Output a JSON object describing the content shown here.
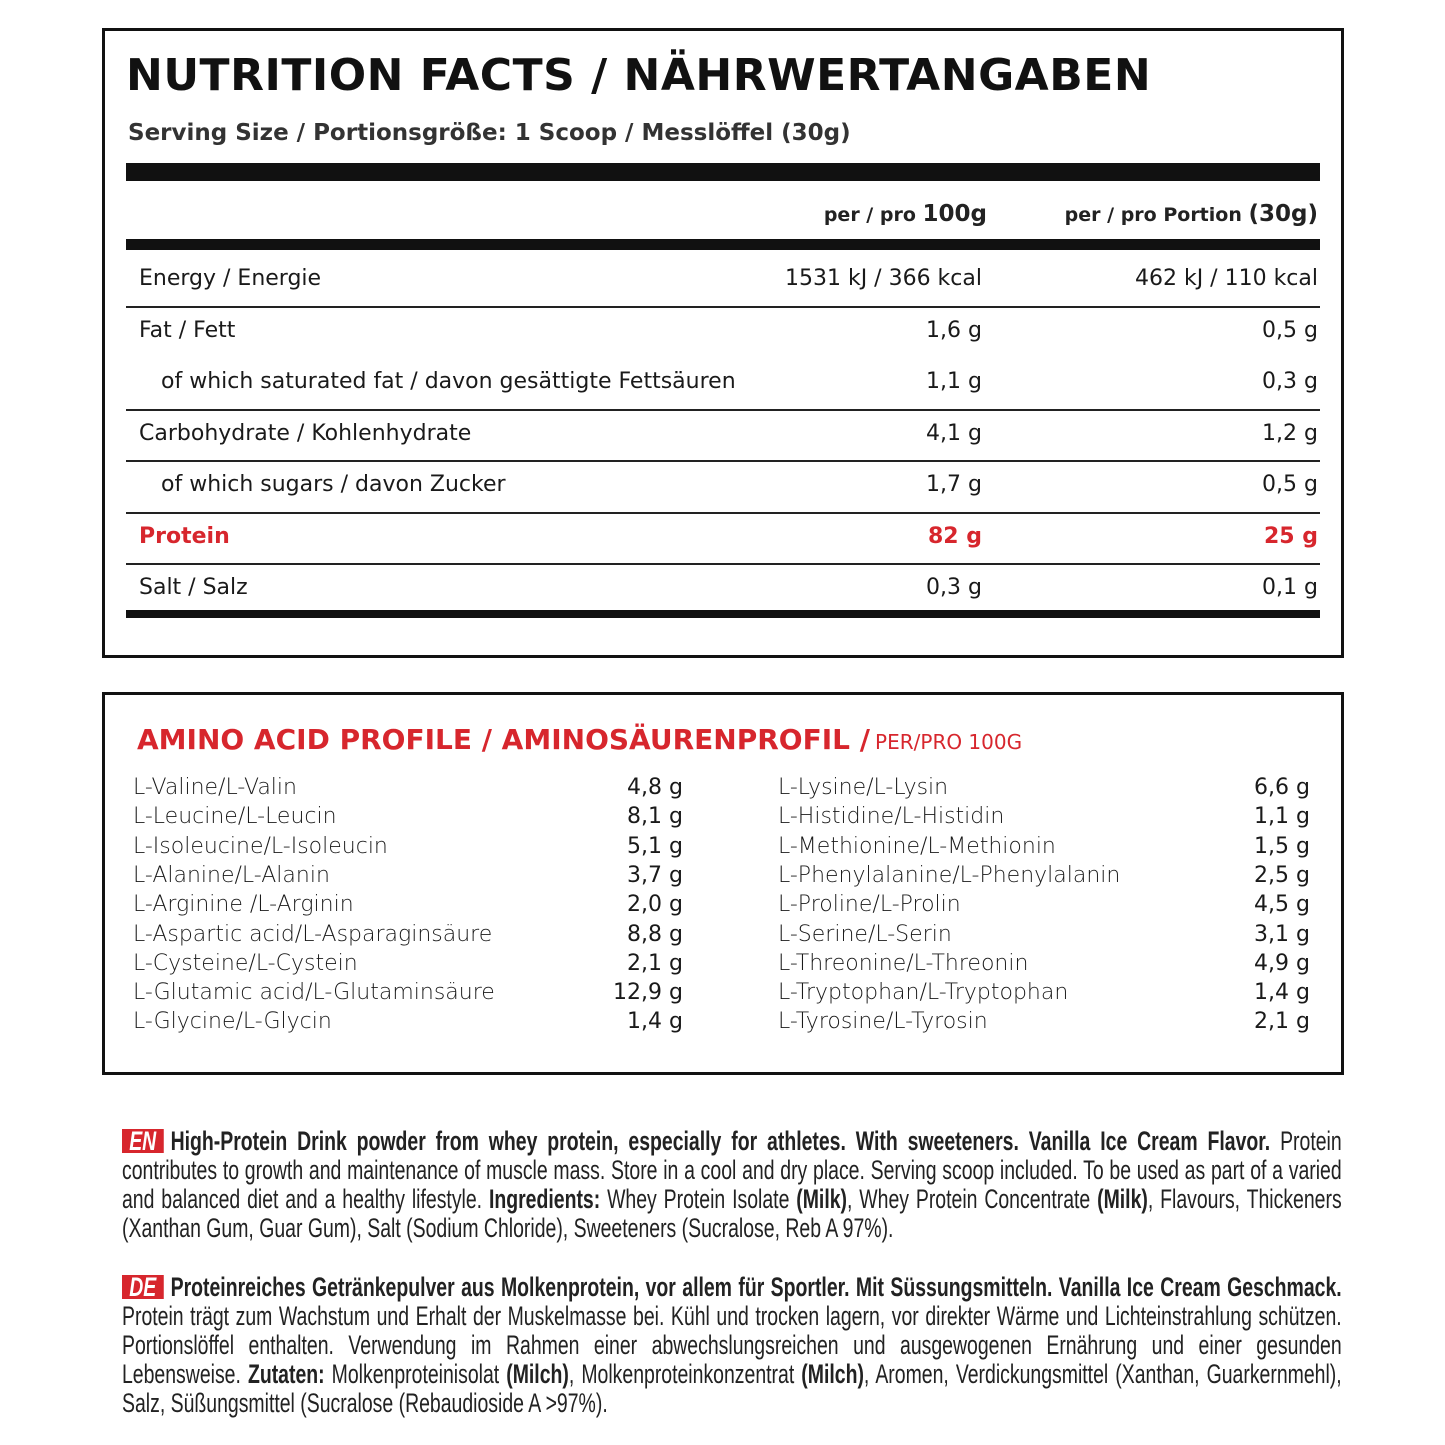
{
  "nutrition": {
    "title": "NUTRITION FACTS / NÄHRWERTANGABEN",
    "serving": "Serving Size / Portionsgröße: 1 Scoop / Messlöffel (30g)",
    "headers": [
      {
        "prefix": "per / pro",
        "emphasis": "100g"
      },
      {
        "prefix": "per / pro Portion",
        "emphasis": "(30g)"
      }
    ],
    "rows": [
      {
        "label": "Energy / Energie",
        "per_100g": "1531 kJ / 366 kcal",
        "per_portion": "462 kJ / 110 kcal"
      },
      {
        "label": "Fat / Fett",
        "per_100g": "1,6 g",
        "per_portion": "0,5 g"
      },
      {
        "label": "of which saturated fat / davon gesättigte Fettsäuren",
        "per_100g": "1,1 g",
        "per_portion": "0,3 g",
        "sub": true
      },
      {
        "label": "Carbohydrate / Kohlenhydrate",
        "per_100g": "4,1 g",
        "per_portion": "1,2 g"
      },
      {
        "label": "of which sugars / davon Zucker",
        "per_100g": "1,7 g",
        "per_portion": "0,5 g",
        "sub": true
      },
      {
        "label": "Protein",
        "per_100g": "82 g",
        "per_portion": "25 g",
        "highlight": true
      },
      {
        "label": "Salt / Salz",
        "per_100g": "0,3 g",
        "per_portion": "0,1 g"
      }
    ]
  },
  "amino": {
    "title": "AMINO ACID PROFILE / AMINOSÄURENPROFIL /",
    "unit": "PER/PRO 100G",
    "columns": [
      [
        {
          "name": "L-Valine/L-Valin",
          "value": "4,8 g"
        },
        {
          "name": "L-Leucine/L-Leucin",
          "value": "8,1 g"
        },
        {
          "name": "L-Isoleucine/L-Isoleucin",
          "value": "5,1 g"
        },
        {
          "name": "L-Alanine/L-Alanin",
          "value": "3,7 g"
        },
        {
          "name": "L-Arginine /L-Arginin",
          "value": "2,0 g"
        },
        {
          "name": "L-Aspartic acid/L-Asparaginsäure",
          "value": "8,8 g"
        },
        {
          "name": "L-Cysteine/L-Cystein",
          "value": "2,1 g"
        },
        {
          "name": "L-Glutamic acid/L-Glutaminsäure",
          "value": "12,9 g"
        },
        {
          "name": "L-Glycine/L-Glycin",
          "value": "1,4 g"
        }
      ],
      [
        {
          "name": "L-Lysine/L-Lysin",
          "value": "6,6 g"
        },
        {
          "name": "L-Histidine/L-Histidin",
          "value": "1,1 g"
        },
        {
          "name": "L-Methionine/L-Methionin",
          "value": "1,5 g"
        },
        {
          "name": "L-Phenylalanine/L-Phenylalanin",
          "value": "2,5 g"
        },
        {
          "name": "L-Proline/L-Prolin",
          "value": "4,5 g"
        },
        {
          "name": "L-Serine/L-Serin",
          "value": "3,1 g"
        },
        {
          "name": "L-Threonine/L-Threonin",
          "value": "4,9 g"
        },
        {
          "name": "L-Tryptophan/L-Tryptophan",
          "value": "1,4 g"
        },
        {
          "name": "L-Tyrosine/L-Tyrosin",
          "value": "2,1 g"
        }
      ]
    ]
  },
  "descriptions": [
    {
      "lang": "EN",
      "parts": [
        {
          "text": "High-Protein Drink powder from whey protein, especially for athletes. With sweeteners. Vanilla Ice Cream Flavor.",
          "bold": true
        },
        {
          "text": " Protein contributes to growth and maintenance of muscle mass. Store in a cool and dry place. Serving scoop included. To be used as part of a varied and balanced diet and a healthy lifestyle. "
        },
        {
          "text": "Ingredients:",
          "bold": true
        },
        {
          "text": " Whey Protein Isolate "
        },
        {
          "text": "(Milk)",
          "bold": true
        },
        {
          "text": ", Whey Protein Concentrate "
        },
        {
          "text": "(Milk)",
          "bold": true
        },
        {
          "text": ", Flavours, Thickeners (Xanthan Gum, Guar Gum), Salt (Sodium Chloride), Sweeteners (Sucralose, Reb A 97%)."
        }
      ]
    },
    {
      "lang": "DE",
      "parts": [
        {
          "text": "Proteinreiches Getränkepulver aus Molkenprotein, vor allem für Sportler. Mit Süssungsmitteln. Vanilla Ice Cream Geschmack.",
          "bold": true
        },
        {
          "text": " Protein trägt zum Wachstum und Erhalt der Muskelmasse bei. Kühl und trocken lagern, vor direkter Wärme und Lichteinstrahlung schützen. Portionslöffel enthalten. Verwendung im Rahmen einer abwechslungsreichen und ausgewogenen Ernährung und einer gesunden Lebensweise. "
        },
        {
          "text": "Zutaten:",
          "bold": true
        },
        {
          "text": " Molkenproteinisolat "
        },
        {
          "text": "(Milch)",
          "bold": true
        },
        {
          "text": ", Molkenproteinkonzentrat "
        },
        {
          "text": "(Milch)",
          "bold": true
        },
        {
          "text": ", Aromen,  Verdickungsmittel (Xanthan, Guarkernmehl), Salz, Süßungsmittel (Sucralose (Rebaudioside A >97%)."
        }
      ]
    }
  ]
}
